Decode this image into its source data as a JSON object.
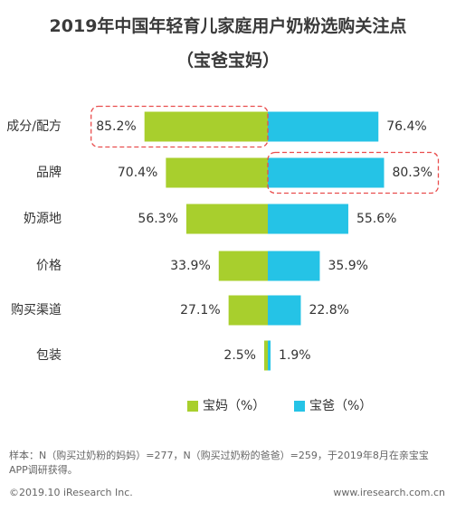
{
  "chart_data": {
    "type": "bar",
    "title": "2019年中国年轻育儿家庭用户奶粉选购关注点",
    "subtitle": "（宝爸宝妈）",
    "categories": [
      "成分/配方",
      "品牌",
      "奶源地",
      "价格",
      "购买渠道",
      "包装"
    ],
    "series": [
      {
        "name": "宝妈（%）",
        "values": [
          85.2,
          70.4,
          56.3,
          33.9,
          27.1,
          2.5
        ],
        "labels": [
          "85.2%",
          "70.4%",
          "56.3%",
          "33.9%",
          "27.1%",
          "2.5%"
        ],
        "color": "#a8cf2d"
      },
      {
        "name": "宝爸（%）",
        "values": [
          76.4,
          80.3,
          55.6,
          35.9,
          22.8,
          1.9
        ],
        "labels": [
          "76.4%",
          "80.3%",
          "55.6%",
          "35.9%",
          "22.8%",
          "1.9%"
        ],
        "color": "#25c3e6"
      }
    ],
    "highlights": [
      {
        "series": 0,
        "category": 0
      },
      {
        "series": 1,
        "category": 1
      }
    ],
    "highlight_color": "#e94e4e",
    "xlim": [
      0,
      100
    ]
  },
  "footer": {
    "note": "样本：N（购买过奶粉的妈妈）=277，N（购买过奶粉的爸爸）=259，于2019年8月在亲宝宝APP调研获得。",
    "copyright": "©2019.10 iResearch Inc.",
    "website": "www.iresearch.com.cn"
  }
}
